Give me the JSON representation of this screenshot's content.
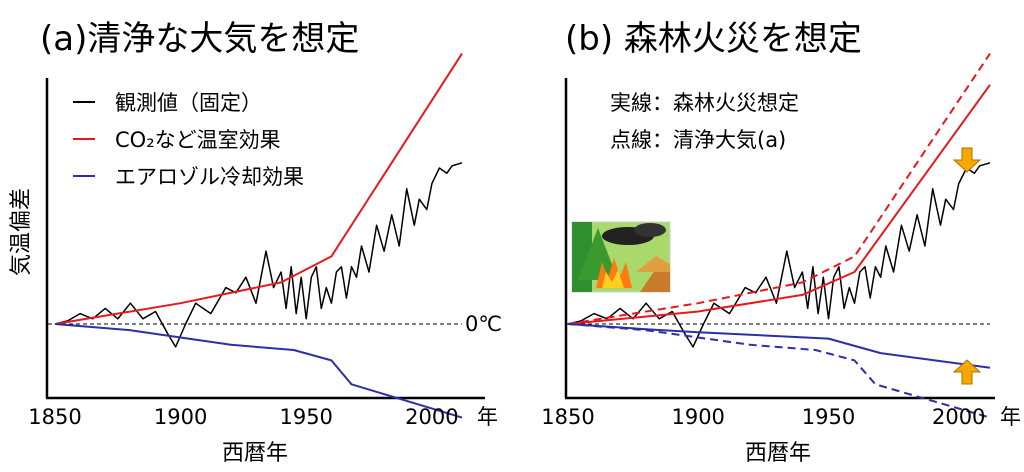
{
  "chart_data": [
    {
      "type": "line",
      "title": "(a)清浄な大気を想定",
      "ylabel": "気温偏差",
      "xlabel": "西暦年",
      "x_unit": "年",
      "xlim": [
        1850,
        2012
      ],
      "x_ticks": [
        "1850",
        "1900",
        "1950",
        "2000"
      ],
      "grid": false,
      "legend_position": "top-left",
      "zero_line_label": "0℃",
      "series": [
        {
          "name": "観測値（固定）",
          "color": "#000000",
          "style": "solid",
          "x": [
            1850,
            1855,
            1860,
            1865,
            1870,
            1875,
            1880,
            1885,
            1890,
            1895,
            1898,
            1902,
            1906,
            1912,
            1918,
            1922,
            1926,
            1930,
            1934,
            1937,
            1940,
            1942,
            1944,
            1946,
            1948,
            1950,
            1952,
            1954,
            1956,
            1958,
            1960,
            1962,
            1964,
            1966,
            1968,
            1970,
            1972,
            1975,
            1978,
            1981,
            1984,
            1987,
            1990,
            1993,
            1995,
            1998,
            2000,
            2003,
            2006,
            2008,
            2012
          ],
          "y": [
            0,
            0.03,
            0.1,
            0.05,
            0.15,
            0.05,
            0.2,
            0.05,
            0.12,
            -0.1,
            -0.22,
            0,
            0.2,
            0.1,
            0.35,
            0.3,
            0.45,
            0.2,
            0.7,
            0.35,
            0.5,
            0.15,
            0.55,
            0.1,
            0.45,
            0.05,
            0.45,
            0.55,
            0.15,
            0.35,
            0.2,
            0.5,
            0.55,
            0.25,
            0.55,
            0.45,
            0.75,
            0.5,
            0.95,
            0.7,
            1.05,
            0.75,
            1.3,
            0.95,
            1.2,
            1.1,
            1.35,
            1.5,
            1.45,
            1.52,
            1.55
          ]
        },
        {
          "name": "CO₂など温室効果",
          "color": "#e8191c",
          "style": "solid",
          "x": [
            1850,
            1900,
            1940,
            1960,
            2012
          ],
          "y": [
            0,
            0.2,
            0.4,
            0.65,
            2.6
          ]
        },
        {
          "name": "エアロゾル冷却効果",
          "color": "#2e2ea8",
          "style": "solid",
          "x": [
            1850,
            1880,
            1900,
            1920,
            1945,
            1960,
            1968,
            2012
          ],
          "y": [
            0,
            -0.06,
            -0.13,
            -0.2,
            -0.25,
            -0.35,
            -0.58,
            -0.9
          ]
        }
      ]
    },
    {
      "type": "line",
      "title": "(b) 森林火災を想定",
      "xlabel": "西暦年",
      "x_unit": "年",
      "xlim": [
        1850,
        2012
      ],
      "x_ticks": [
        "1850",
        "1900",
        "1950",
        "2000"
      ],
      "grid": false,
      "annotations": [
        "実線：森林火災想定",
        "点線：清浄大気(a)"
      ],
      "series": [
        {
          "color": "#000000",
          "style": "solid",
          "x": [
            1850,
            1855,
            1860,
            1865,
            1870,
            1875,
            1880,
            1885,
            1890,
            1895,
            1898,
            1902,
            1906,
            1912,
            1918,
            1922,
            1926,
            1930,
            1934,
            1937,
            1940,
            1942,
            1944,
            1946,
            1948,
            1950,
            1952,
            1954,
            1956,
            1958,
            1960,
            1962,
            1964,
            1966,
            1968,
            1970,
            1972,
            1975,
            1978,
            1981,
            1984,
            1987,
            1990,
            1993,
            1995,
            1998,
            2000,
            2003,
            2006,
            2008,
            2012
          ],
          "y": [
            0,
            0.03,
            0.1,
            0.05,
            0.15,
            0.05,
            0.2,
            0.05,
            0.12,
            -0.1,
            -0.22,
            0,
            0.2,
            0.1,
            0.35,
            0.3,
            0.45,
            0.2,
            0.7,
            0.35,
            0.5,
            0.15,
            0.55,
            0.1,
            0.45,
            0.05,
            0.45,
            0.55,
            0.15,
            0.35,
            0.2,
            0.5,
            0.55,
            0.25,
            0.55,
            0.45,
            0.75,
            0.5,
            0.95,
            0.7,
            1.05,
            0.75,
            1.3,
            0.95,
            1.2,
            1.1,
            1.35,
            1.5,
            1.45,
            1.52,
            1.55
          ]
        },
        {
          "color": "#e8191c",
          "style": "solid",
          "x": [
            1850,
            1900,
            1940,
            1960,
            2012
          ],
          "y": [
            0,
            0.12,
            0.28,
            0.5,
            2.3
          ]
        },
        {
          "color": "#e8191c",
          "style": "dashed",
          "x": [
            1850,
            1900,
            1940,
            1960,
            2012
          ],
          "y": [
            0,
            0.2,
            0.4,
            0.65,
            2.6
          ]
        },
        {
          "color": "#2e2ea8",
          "style": "solid",
          "x": [
            1850,
            1880,
            1900,
            1950,
            1970,
            2012
          ],
          "y": [
            0,
            -0.05,
            -0.08,
            -0.14,
            -0.28,
            -0.42
          ]
        },
        {
          "color": "#2e2ea8",
          "style": "dashed",
          "x": [
            1850,
            1880,
            1900,
            1920,
            1945,
            1960,
            1968,
            2012
          ],
          "y": [
            0,
            -0.06,
            -0.13,
            -0.2,
            -0.25,
            -0.35,
            -0.58,
            -0.9
          ]
        }
      ],
      "arrows": [
        {
          "direction": "down",
          "color": "#f5a800"
        },
        {
          "direction": "up",
          "color": "#f5a800"
        }
      ],
      "illustration": "forest-fire-illustration"
    }
  ]
}
